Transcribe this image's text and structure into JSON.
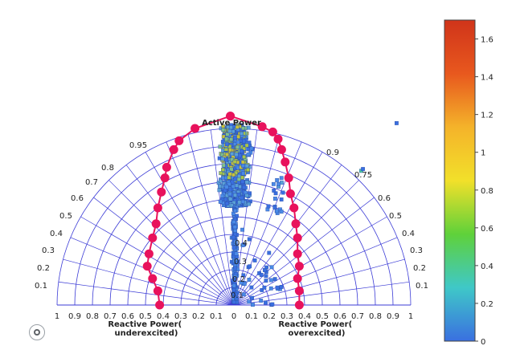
{
  "chart_data": {
    "type": "scatter",
    "title": "Active Power",
    "xlabel_left": "Reactive Power(\nunderexcited)",
    "xlabel_right": "Reactive Power(\noverexcited)",
    "x_ticks": [
      "1",
      "0.9",
      "0.8",
      "0.7",
      "0.6",
      "0.5",
      "0.4",
      "0.3",
      "0.2",
      "0.1",
      "0",
      "0.1",
      "0.2",
      "0.3",
      "0.4",
      "0.5",
      "0.6",
      "0.7",
      "0.8",
      "0.9",
      "1"
    ],
    "radial_labels_left": [
      "0.95",
      "0.8",
      "0.7",
      "0.6",
      "0.5",
      "0.4",
      "0.3",
      "0.2",
      "0.1"
    ],
    "radial_labels_right": [
      "0.9",
      "0.75",
      "0.6",
      "0.5",
      "0.4",
      "0.3",
      "0.2",
      "0.1"
    ],
    "inner_labels": [
      "0.4",
      "0.3",
      "0.2",
      "0.1"
    ],
    "colorbar": {
      "min": 0,
      "max": 1.7,
      "ticks": [
        "0",
        "0.2",
        "0.4",
        "0.6",
        "0.8",
        "1",
        "1.2",
        "1.4",
        "1.6"
      ],
      "colors": [
        "#3a6fe0",
        "#3fc8c8",
        "#5fd13a",
        "#f2e02a",
        "#f4b32a",
        "#e8581e",
        "#d0341a"
      ]
    },
    "boundary_left": [
      [
        -0.02,
        1.07
      ],
      [
        -0.22,
        1.0
      ],
      [
        -0.31,
        0.93
      ],
      [
        -0.34,
        0.88
      ],
      [
        -0.38,
        0.78
      ],
      [
        -0.39,
        0.72
      ],
      [
        -0.41,
        0.64
      ],
      [
        -0.43,
        0.55
      ],
      [
        -0.44,
        0.46
      ],
      [
        -0.46,
        0.38
      ],
      [
        -0.48,
        0.29
      ],
      [
        -0.49,
        0.22
      ],
      [
        -0.46,
        0.15
      ],
      [
        -0.43,
        0.08
      ],
      [
        -0.42,
        0.0
      ]
    ],
    "boundary_right": [
      [
        -0.02,
        1.07
      ],
      [
        0.16,
        1.01
      ],
      [
        0.22,
        0.98
      ],
      [
        0.25,
        0.94
      ],
      [
        0.27,
        0.88
      ],
      [
        0.29,
        0.81
      ],
      [
        0.31,
        0.72
      ],
      [
        0.32,
        0.63
      ],
      [
        0.34,
        0.55
      ],
      [
        0.35,
        0.46
      ],
      [
        0.36,
        0.38
      ],
      [
        0.36,
        0.29
      ],
      [
        0.37,
        0.22
      ],
      [
        0.36,
        0.15
      ],
      [
        0.37,
        0.08
      ],
      [
        0.37,
        0.0
      ]
    ],
    "outlier": [
      0.62,
      1.03
    ],
    "marker_color": "#e8125c",
    "grid_color": "#3b3bd6"
  }
}
